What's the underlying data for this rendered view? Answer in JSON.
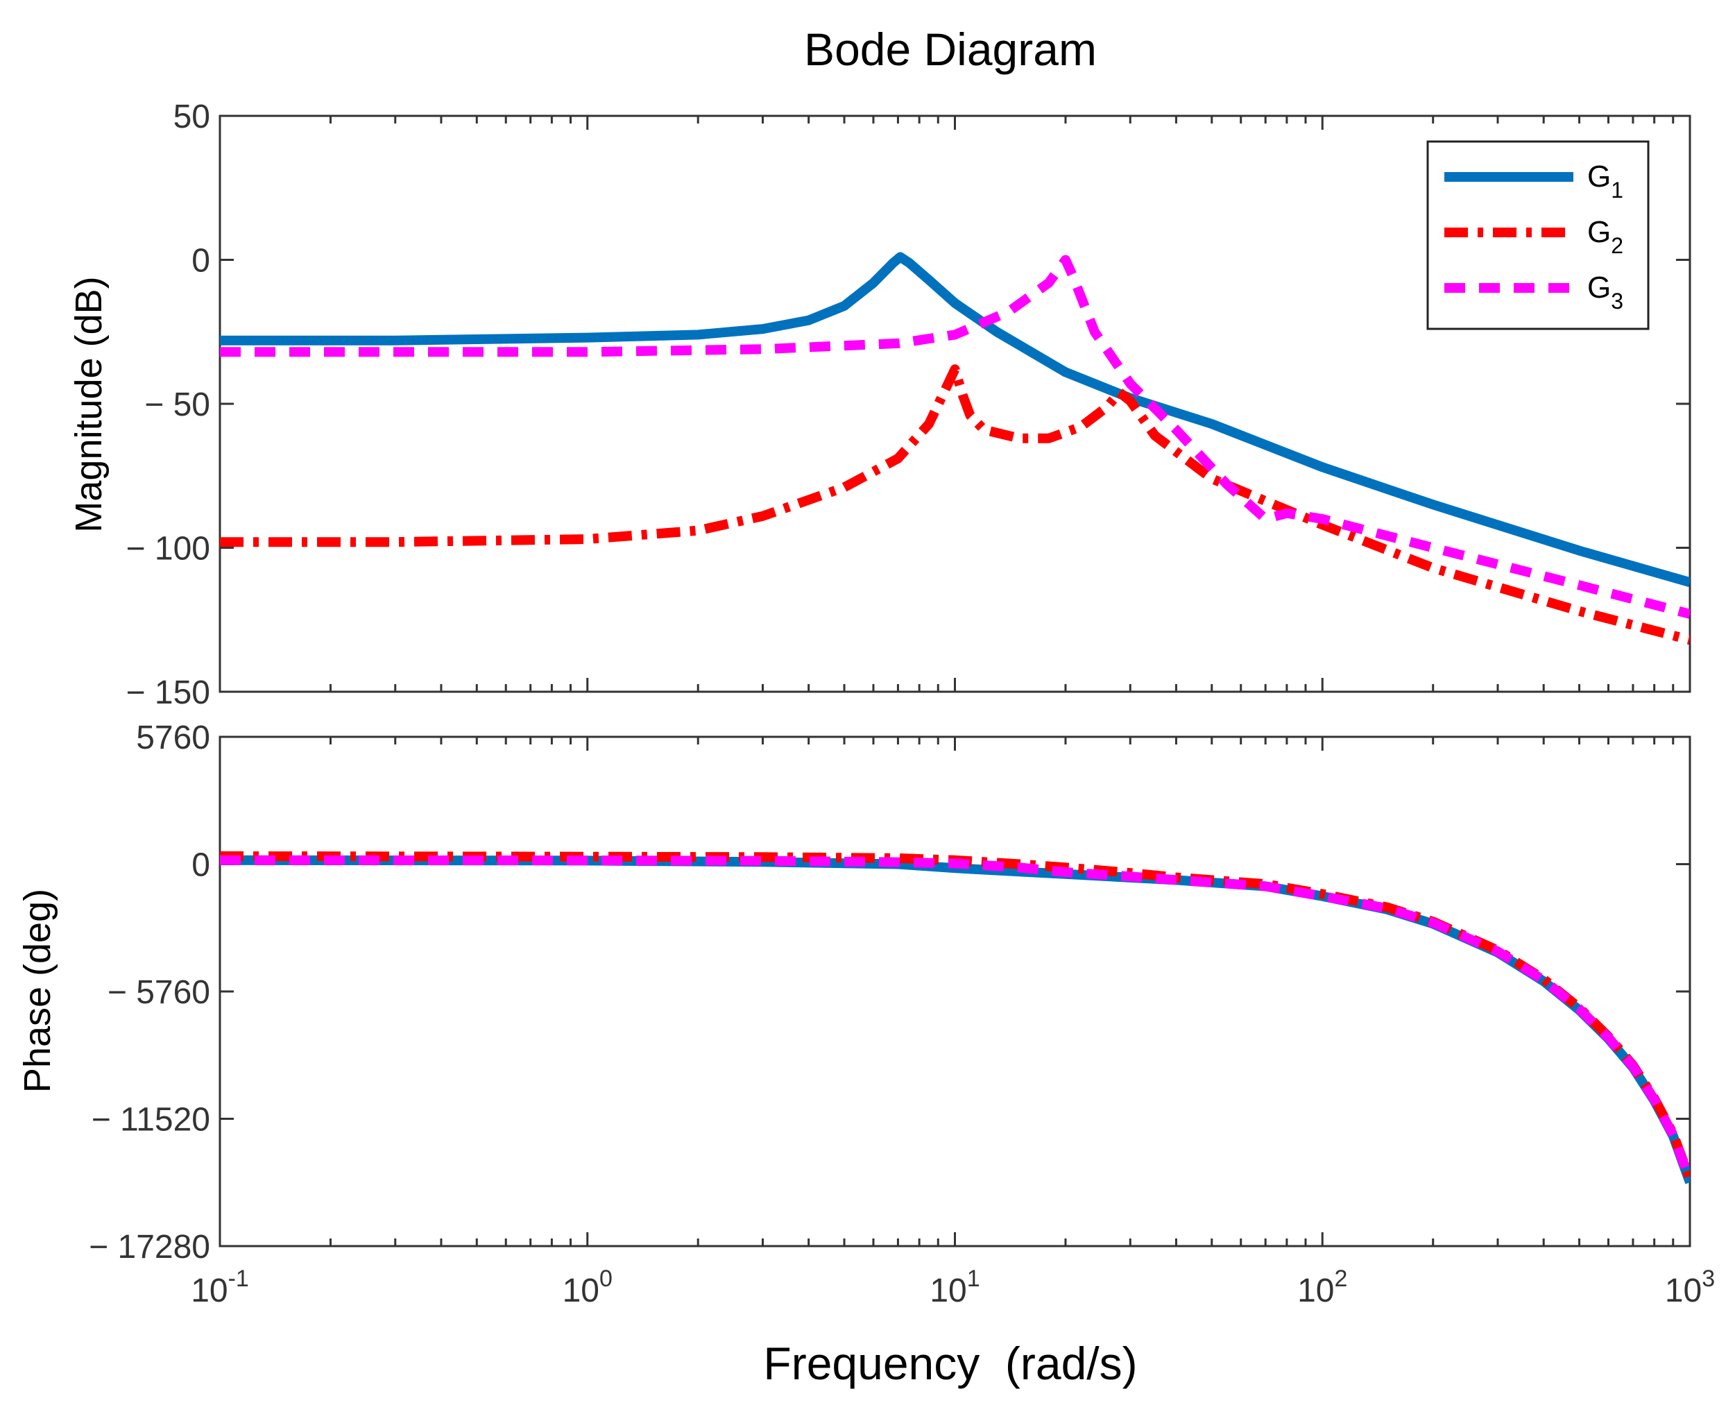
{
  "chart_data": {
    "type": "line",
    "title": "Bode Diagram",
    "xlabel": "Frequency  (rad/s)",
    "xscale": "log",
    "xlim": [
      0.1,
      1000
    ],
    "x_ticks": [
      {
        "value": 0.1,
        "base": "10",
        "exp": "-1"
      },
      {
        "value": 1,
        "base": "10",
        "exp": "0"
      },
      {
        "value": 10,
        "base": "10",
        "exp": "1"
      },
      {
        "value": 100,
        "base": "10",
        "exp": "2"
      },
      {
        "value": 1000,
        "base": "10",
        "exp": "3"
      }
    ],
    "colors": {
      "G1": "#0072BD",
      "G2": "#FF0000",
      "G3": "#FF00FF"
    },
    "legend": {
      "placement": "top-right",
      "entries": [
        {
          "base": "G",
          "sub": "1",
          "color": "#0072BD",
          "style": "solid"
        },
        {
          "base": "G",
          "sub": "2",
          "color": "#FF0000",
          "style": "dashdot"
        },
        {
          "base": "G",
          "sub": "3",
          "color": "#FF00FF",
          "style": "dashed"
        }
      ]
    },
    "magnitude": {
      "ylabel": "Magnitude (dB)",
      "ylim": [
        -150,
        50
      ],
      "y_ticks": [
        {
          "value": 50,
          "label": "50"
        },
        {
          "value": 0,
          "label": "0"
        },
        {
          "value": -50,
          "label": "− 50"
        },
        {
          "value": -100,
          "label": "− 100"
        },
        {
          "value": -150,
          "label": "− 150"
        }
      ],
      "series": [
        {
          "name": "G1",
          "style": "solid",
          "x": [
            0.1,
            0.3,
            1,
            2,
            3,
            4,
            5,
            6,
            6.8,
            7.1,
            7.5,
            8.5,
            10,
            13,
            20,
            30,
            50,
            100,
            200,
            500,
            1000
          ],
          "y": [
            -28,
            -28,
            -27,
            -26,
            -24,
            -21,
            -16,
            -8,
            -1,
            1,
            -1,
            -7,
            -15,
            -25,
            -39,
            -48,
            -57,
            -72,
            -85,
            -101,
            -112
          ]
        },
        {
          "name": "G2",
          "style": "dashdot",
          "x": [
            0.1,
            0.3,
            1,
            2,
            3,
            5,
            7,
            8.5,
            9.5,
            10,
            10.5,
            11,
            12,
            15,
            18,
            22,
            26,
            28,
            30,
            35,
            50,
            100,
            200,
            500,
            1000
          ],
          "y": [
            -98,
            -98,
            -97,
            -94,
            -89,
            -79,
            -69,
            -57,
            -44,
            -38,
            -47,
            -54,
            -59,
            -62,
            -62,
            -58,
            -51,
            -46,
            -49,
            -61,
            -76,
            -92,
            -107,
            -122,
            -132
          ]
        },
        {
          "name": "G3",
          "style": "dashed",
          "x": [
            0.1,
            0.3,
            1,
            3,
            7,
            10,
            14,
            18,
            20,
            21,
            24,
            30,
            40,
            55,
            70,
            80,
            100,
            200,
            500,
            1000
          ],
          "y": [
            -32,
            -32,
            -32,
            -31,
            -29,
            -26,
            -18,
            -8,
            0,
            -6,
            -25,
            -43,
            -59,
            -78,
            -90,
            -88,
            -90,
            -100,
            -113,
            -123
          ]
        }
      ]
    },
    "phase": {
      "ylabel": "Phase (deg)",
      "ylim": [
        -17280,
        5760
      ],
      "y_ticks": [
        {
          "value": 5760,
          "label": "5760"
        },
        {
          "value": 0,
          "label": "0"
        },
        {
          "value": -5760,
          "label": "− 5760"
        },
        {
          "value": -11520,
          "label": "− 11520"
        },
        {
          "value": -17280,
          "label": "− 17280"
        }
      ],
      "series": [
        {
          "name": "G1",
          "style": "solid",
          "x": [
            0.1,
            1,
            3,
            7,
            10,
            20,
            40,
            70,
            100,
            150,
            200,
            300,
            400,
            500,
            600,
            700,
            800,
            900,
            1000
          ],
          "y": [
            180,
            160,
            100,
            0,
            -180,
            -450,
            -720,
            -1000,
            -1450,
            -2050,
            -2700,
            -4000,
            -5300,
            -6600,
            -7900,
            -9200,
            -10700,
            -12300,
            -14400
          ]
        },
        {
          "name": "G2",
          "style": "dashdot",
          "x": [
            0.1,
            1,
            3,
            7,
            10,
            15,
            20,
            28,
            40,
            70,
            100,
            150,
            200,
            300,
            400,
            500,
            600,
            700,
            800,
            900,
            1000
          ],
          "y": [
            360,
            340,
            320,
            270,
            180,
            0,
            -150,
            -350,
            -600,
            -900,
            -1350,
            -1950,
            -2600,
            -3900,
            -5200,
            -6500,
            -7800,
            -9100,
            -10600,
            -12200,
            -14250
          ]
        },
        {
          "name": "G3",
          "style": "dashed",
          "x": [
            0.1,
            1,
            3,
            7,
            10,
            15,
            20,
            30,
            40,
            70,
            100,
            150,
            200,
            300,
            400,
            500,
            600,
            700,
            800,
            900,
            1000
          ],
          "y": [
            180,
            170,
            150,
            90,
            30,
            -150,
            -360,
            -560,
            -720,
            -1000,
            -1450,
            -2000,
            -2650,
            -3950,
            -5250,
            -6550,
            -7850,
            -9150,
            -10650,
            -12250,
            -14300
          ]
        }
      ]
    }
  }
}
